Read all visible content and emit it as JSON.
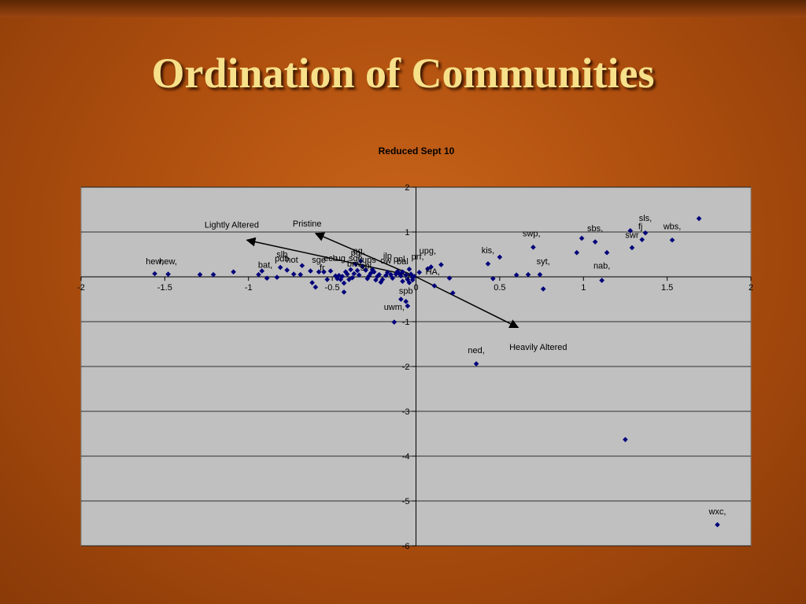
{
  "slide": {
    "title": "Ordination of Communities"
  },
  "chart_data": {
    "type": "scatter",
    "title": "Reduced Sept 10",
    "xlim": [
      -2,
      2
    ],
    "ylim": [
      -6,
      2
    ],
    "x_ticks": [
      -2,
      -1.5,
      -1,
      -0.5,
      0,
      0.5,
      1,
      1.5,
      2
    ],
    "y_ticks": [
      2,
      1,
      0,
      -1,
      -2,
      -3,
      -4,
      -5,
      -6
    ],
    "x_tick_labels": [
      "-2",
      "-1.5",
      "-1",
      "-0.5",
      "0",
      "0.5",
      "1",
      "1.5",
      "2"
    ],
    "y_tick_labels": [
      "2",
      "1",
      "0",
      "-1",
      "-2",
      "-3",
      "-4",
      "-5",
      "-6"
    ],
    "grid": "horizontal",
    "marker_color": "#00007a",
    "points": [
      [
        -1.56,
        0.07
      ],
      [
        -1.48,
        0.06
      ],
      [
        -1.29,
        0.05
      ],
      [
        -1.21,
        0.05
      ],
      [
        -1.09,
        0.11
      ],
      [
        -0.94,
        0.05
      ],
      [
        -0.92,
        0.13
      ],
      [
        -0.89,
        -0.03
      ],
      [
        -0.83,
        -0.01
      ],
      [
        -0.81,
        0.21
      ],
      [
        -0.77,
        0.15
      ],
      [
        -0.73,
        0.06
      ],
      [
        -0.69,
        0.05
      ],
      [
        -0.68,
        0.25
      ],
      [
        -0.63,
        0.13
      ],
      [
        -0.62,
        -0.13
      ],
      [
        -0.6,
        -0.23
      ],
      [
        -0.58,
        0.11
      ],
      [
        -0.55,
        0.11
      ],
      [
        -0.53,
        -0.06
      ],
      [
        -0.51,
        0.13
      ],
      [
        -0.48,
        0.02
      ],
      [
        -0.47,
        -0.04
      ],
      [
        -0.46,
        0.03
      ],
      [
        -0.45,
        -0.06
      ],
      [
        -0.44,
        0.01
      ],
      [
        -0.43,
        -0.14
      ],
      [
        -0.43,
        -0.34
      ],
      [
        -0.42,
        0.11
      ],
      [
        -0.41,
        0.06
      ],
      [
        -0.4,
        -0.06
      ],
      [
        -0.39,
        0.16
      ],
      [
        -0.38,
        -0.02
      ],
      [
        -0.37,
        0.07
      ],
      [
        -0.36,
        0.28
      ],
      [
        -0.35,
        0.14
      ],
      [
        -0.34,
        0.04
      ],
      [
        -0.33,
        0.35
      ],
      [
        -0.32,
        0.23
      ],
      [
        -0.3,
        0.15
      ],
      [
        -0.29,
        -0.04
      ],
      [
        -0.28,
        0.02
      ],
      [
        -0.27,
        0.08
      ],
      [
        -0.26,
        0.16
      ],
      [
        -0.25,
        0.11
      ],
      [
        -0.24,
        -0.07
      ],
      [
        -0.23,
        0.01
      ],
      [
        -0.22,
        0.05
      ],
      [
        -0.21,
        -0.12
      ],
      [
        -0.2,
        -0.06
      ],
      [
        -0.18,
        0.03
      ],
      [
        -0.17,
        0.1
      ],
      [
        -0.15,
        0.05
      ],
      [
        -0.14,
        -0.03
      ],
      [
        -0.12,
        0.06
      ],
      [
        -0.11,
        0.12
      ],
      [
        -0.1,
        0.07
      ],
      [
        -0.09,
        0.02
      ],
      [
        -0.08,
        0.11
      ],
      [
        -0.06,
        0.04
      ],
      [
        -0.05,
        -0.06
      ],
      [
        -0.04,
        0.17
      ],
      [
        -0.03,
        0.06
      ],
      [
        -0.02,
        -0.02
      ],
      [
        -0.01,
        0.01
      ],
      [
        -0.08,
        -0.1
      ],
      [
        -0.04,
        -0.13
      ],
      [
        -0.02,
        -0.07
      ],
      [
        -0.09,
        -0.5
      ],
      [
        -0.06,
        -0.55
      ],
      [
        -0.05,
        -0.65
      ],
      [
        -0.13,
        -1.01
      ],
      [
        0.02,
        0.1
      ],
      [
        0.07,
        0.18
      ],
      [
        0.09,
        0.22
      ],
      [
        0.11,
        -0.2
      ],
      [
        0.15,
        0.27
      ],
      [
        0.2,
        -0.03
      ],
      [
        0.22,
        -0.36
      ],
      [
        0.36,
        -1.94
      ],
      [
        0.43,
        0.29
      ],
      [
        0.46,
        -0.04
      ],
      [
        0.5,
        0.44
      ],
      [
        0.6,
        0.04
      ],
      [
        0.67,
        0.05
      ],
      [
        0.7,
        0.66
      ],
      [
        0.74,
        0.05
      ],
      [
        0.76,
        -0.27
      ],
      [
        0.96,
        0.54
      ],
      [
        0.99,
        0.86
      ],
      [
        1.07,
        0.78
      ],
      [
        1.11,
        -0.08
      ],
      [
        1.14,
        0.54
      ],
      [
        1.25,
        -3.63
      ],
      [
        1.28,
        1.03
      ],
      [
        1.29,
        0.65
      ],
      [
        1.35,
        0.83
      ],
      [
        1.37,
        0.98
      ],
      [
        1.53,
        0.82
      ],
      [
        1.69,
        1.3
      ],
      [
        1.8,
        -5.53
      ]
    ],
    "labels": [
      {
        "text": "hew,",
        "x": -1.56,
        "y": 0.28
      },
      {
        "text": "hew,",
        "x": -1.48,
        "y": 0.28
      },
      {
        "text": "bat,",
        "x": -0.9,
        "y": 0.2
      },
      {
        "text": "slb",
        "x": -0.8,
        "y": 0.44
      },
      {
        "text": "pdb",
        "x": -0.8,
        "y": 0.34
      },
      {
        "text": "hot",
        "x": -0.74,
        "y": 0.32
      },
      {
        "text": "sge",
        "x": -0.58,
        "y": 0.32
      },
      {
        "text": "fr",
        "x": -0.56,
        "y": 0.14
      },
      {
        "text": "ecb",
        "x": -0.51,
        "y": 0.35
      },
      {
        "text": "ug",
        "x": -0.45,
        "y": 0.35
      },
      {
        "text": "sge",
        "x": -0.36,
        "y": 0.35
      },
      {
        "text": "ng,",
        "x": -0.34,
        "y": 0.52
      },
      {
        "text": "pg",
        "x": -0.36,
        "y": 0.47
      },
      {
        "text": "ups",
        "x": -0.28,
        "y": 0.32
      },
      {
        "text": "brw",
        "x": -0.37,
        "y": 0.23
      },
      {
        "text": "gbl",
        "x": -0.3,
        "y": 0.18
      },
      {
        "text": "ilp",
        "x": -0.17,
        "y": 0.4
      },
      {
        "text": "ow",
        "x": -0.18,
        "y": 0.3
      },
      {
        "text": "pnl",
        "x": -0.1,
        "y": 0.33
      },
      {
        "text": "bal",
        "x": -0.08,
        "y": 0.28
      },
      {
        "text": "prf,",
        "x": 0.01,
        "y": 0.39
      },
      {
        "text": "upg,",
        "x": 0.07,
        "y": 0.52
      },
      {
        "text": "HA,",
        "x": 0.1,
        "y": 0.05
      },
      {
        "text": "kis,",
        "x": 0.43,
        "y": 0.53
      },
      {
        "text": "swp,",
        "x": 0.69,
        "y": 0.9
      },
      {
        "text": "syt,",
        "x": 0.76,
        "y": 0.28
      },
      {
        "text": "sbs,",
        "x": 1.07,
        "y": 1.02
      },
      {
        "text": "nab,",
        "x": 1.11,
        "y": 0.18
      },
      {
        "text": "sls,",
        "x": 1.37,
        "y": 1.25
      },
      {
        "text": "fj",
        "x": 1.34,
        "y": 1.06
      },
      {
        "text": "swr",
        "x": 1.29,
        "y": 0.87
      },
      {
        "text": "wbs,",
        "x": 1.53,
        "y": 1.06
      },
      {
        "text": "spb",
        "x": -0.06,
        "y": -0.38
      },
      {
        "text": "uwm,",
        "x": -0.13,
        "y": -0.74
      },
      {
        "text": "ned,",
        "x": 0.36,
        "y": -1.7
      },
      {
        "text": "wxc,",
        "x": 1.8,
        "y": -5.3
      }
    ],
    "annotations": [
      {
        "text": "Lightly Altered",
        "x": -1.1,
        "y": 1.1
      },
      {
        "text": "Pristine",
        "x": -0.65,
        "y": 1.12
      },
      {
        "text": "Heavily Altered",
        "x": 0.73,
        "y": -1.63
      }
    ],
    "arrows": [
      {
        "from": [
          0.0,
          0.0
        ],
        "to": [
          -1.01,
          0.82
        ]
      },
      {
        "from": [
          0.0,
          0.0
        ],
        "to": [
          -0.6,
          0.97
        ]
      },
      {
        "from": [
          0.0,
          0.0
        ],
        "to": [
          0.61,
          -1.13
        ]
      }
    ]
  }
}
